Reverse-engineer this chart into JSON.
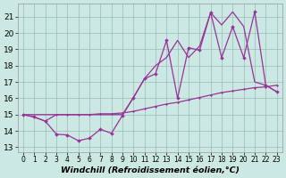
{
  "background_color": "#cce8e2",
  "line_color": "#993399",
  "grid_color": "#99bbbb",
  "xlabel": "Windchill (Refroidissement éolien,°C)",
  "xlim": [
    -0.5,
    23.5
  ],
  "ylim": [
    12.7,
    21.8
  ],
  "yticks": [
    13,
    14,
    15,
    16,
    17,
    18,
    19,
    20,
    21
  ],
  "xticks": [
    0,
    1,
    2,
    3,
    4,
    5,
    6,
    7,
    8,
    9,
    10,
    11,
    12,
    13,
    14,
    15,
    16,
    17,
    18,
    19,
    20,
    21,
    22,
    23
  ],
  "line1_x": [
    0,
    1,
    2,
    3,
    4,
    5,
    6,
    7,
    8,
    9,
    10,
    11,
    12,
    13,
    14,
    15,
    16,
    17,
    18,
    19,
    20,
    21,
    22,
    23
  ],
  "line1_y": [
    15.0,
    14.85,
    14.6,
    13.8,
    13.75,
    13.4,
    13.55,
    14.1,
    13.85,
    14.95,
    16.05,
    17.2,
    17.5,
    19.55,
    16.0,
    19.1,
    18.95,
    21.25,
    18.5,
    20.4,
    18.5,
    21.3,
    16.8,
    16.4
  ],
  "line2_x": [
    0,
    1,
    2,
    3,
    4,
    5,
    6,
    7,
    8,
    9,
    10,
    11,
    12,
    13,
    14,
    15,
    16,
    17,
    18,
    19,
    20,
    21,
    22,
    23
  ],
  "line2_y": [
    15.0,
    14.85,
    14.6,
    15.0,
    15.0,
    15.0,
    15.0,
    15.05,
    15.05,
    15.1,
    15.2,
    15.35,
    15.5,
    15.65,
    15.75,
    15.9,
    16.05,
    16.2,
    16.35,
    16.45,
    16.55,
    16.65,
    16.7,
    16.8
  ],
  "line3_x": [
    0,
    3,
    9,
    10,
    11,
    12,
    13,
    14,
    15,
    16,
    17,
    18,
    19,
    20,
    21,
    22,
    23
  ],
  "line3_y": [
    15.0,
    15.0,
    15.0,
    16.05,
    17.2,
    18.0,
    18.5,
    19.55,
    18.5,
    19.2,
    21.25,
    20.5,
    21.3,
    20.4,
    17.0,
    16.8,
    16.4
  ]
}
